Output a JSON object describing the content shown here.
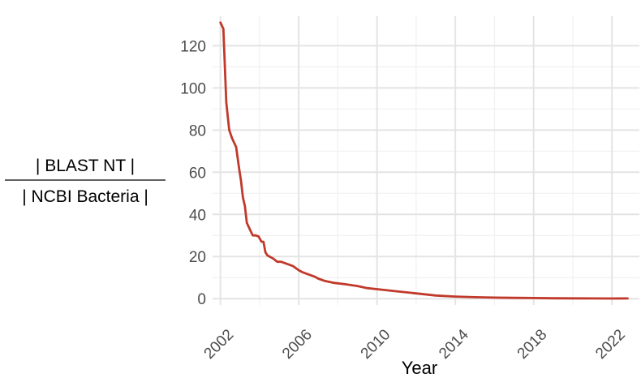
{
  "chart_data": {
    "type": "line",
    "xlabel": "Year",
    "ylabel_numerator": "| BLAST NT |",
    "ylabel_denominator": "| NCBI Bacteria |",
    "xlim": [
      2001.6,
      2023.4
    ],
    "ylim": [
      -3,
      134
    ],
    "x_ticks": [
      2002,
      2006,
      2010,
      2014,
      2018,
      2022
    ],
    "x_tick_labels": [
      "2002",
      "2006",
      "2010",
      "2014",
      "2018",
      "2022"
    ],
    "y_ticks": [
      0,
      20,
      40,
      60,
      80,
      100,
      120
    ],
    "y_tick_labels": [
      "0",
      "20",
      "40",
      "60",
      "80",
      "100",
      "120"
    ],
    "grid": true,
    "line_color": "#c0392b",
    "series": [
      {
        "x": [
          2002.0,
          2002.15,
          2002.3,
          2002.45,
          2002.6,
          2002.8,
          2002.95,
          2003.05,
          2003.15,
          2003.25,
          2003.35,
          2003.5,
          2003.65,
          2003.8,
          2003.95,
          2004.1,
          2004.2,
          2004.3,
          2004.4,
          2004.7,
          2004.9,
          2005.1,
          2005.4,
          2005.7,
          2006.0,
          2006.2,
          2006.5,
          2006.8,
          2007.0,
          2007.3,
          2007.8,
          2008.4,
          2009.0,
          2009.5,
          2010.0,
          2011.0,
          2012.0,
          2013.0,
          2014.0,
          2015.0,
          2016.0,
          2017.0,
          2018.0,
          2019.0,
          2020.0,
          2021.0,
          2022.0,
          2022.8
        ],
        "y": [
          131,
          128,
          93,
          80,
          76,
          72,
          62,
          56,
          48,
          44,
          36,
          33,
          30,
          30,
          29.5,
          27,
          27,
          22,
          20.5,
          19,
          17.5,
          17.5,
          16.5,
          15.5,
          13.5,
          12.5,
          11.5,
          10.5,
          9.5,
          8.5,
          7.5,
          6.8,
          6.0,
          5.0,
          4.5,
          3.5,
          2.5,
          1.5,
          1.0,
          0.7,
          0.5,
          0.4,
          0.3,
          0.2,
          0.15,
          0.1,
          0.08,
          0.1
        ]
      }
    ]
  }
}
